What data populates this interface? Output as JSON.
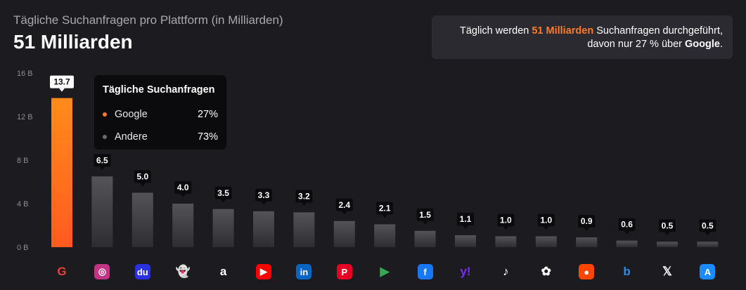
{
  "header": {
    "subtitle": "Tägliche Suchanfragen pro Plattform (in Milliarden)",
    "title": "51 Milliarden"
  },
  "callout": {
    "line1_prefix": "Täglich werden ",
    "line1_highlight": "51 Milliarden",
    "line1_suffix": " Suchanfragen durchgeführt,",
    "line2_prefix": "davon nur 27 % über ",
    "line2_bold": "Google",
    "line2_suffix": "."
  },
  "tooltip": {
    "heading": "Tägliche Suchanfragen",
    "rows": [
      {
        "name": "Google",
        "value": "27%",
        "color": "#ff7a2a"
      },
      {
        "name": "Andere",
        "value": "73%",
        "color": "#6b6a70"
      }
    ]
  },
  "colors": {
    "highlight": "#ff7a2a",
    "bar_top_highlight": "#ff8c1a",
    "bar_bottom_highlight": "#ff5a1f",
    "bar_top": "#545358",
    "bar_bottom": "#2e2d32"
  },
  "chart_data": {
    "type": "bar",
    "ylim": [
      0,
      16
    ],
    "yticks": [
      "0 B",
      "4 B",
      "8 B",
      "12 B",
      "16 B"
    ],
    "categories": [
      "Google",
      "Instagram",
      "Baidu",
      "Snapchat",
      "Amazon",
      "YouTube",
      "LinkedIn",
      "Pinterest",
      "Google Play",
      "Facebook",
      "Yahoo",
      "TikTok",
      "ChatGPT",
      "Reddit",
      "Bing",
      "X",
      "App Store"
    ],
    "values": [
      13.7,
      6.5,
      5.0,
      4.0,
      3.5,
      3.3,
      3.2,
      2.4,
      2.1,
      1.5,
      1.1,
      1.0,
      1.0,
      0.9,
      0.6,
      0.5,
      0.5
    ],
    "labels": [
      "13.7",
      "6.5",
      "5.0",
      "4.0",
      "3.5",
      "3.3",
      "3.2",
      "2.4",
      "2.1",
      "1.5",
      "1.1",
      "1.0",
      "1.0",
      "0.9",
      "0.6",
      "0.5",
      "0.5"
    ],
    "highlight_index": 0
  },
  "icons": [
    {
      "name": "google-icon",
      "glyph": "G",
      "bg": "transparent",
      "fg": "#ea4335"
    },
    {
      "name": "instagram-icon",
      "glyph": "◎",
      "bg": "#c13584",
      "fg": "#ffffff"
    },
    {
      "name": "baidu-icon",
      "glyph": "du",
      "bg": "#2932e1",
      "fg": "#ffffff"
    },
    {
      "name": "snapchat-icon",
      "glyph": "👻",
      "bg": "transparent",
      "fg": "#ffffff"
    },
    {
      "name": "amazon-icon",
      "glyph": "a",
      "bg": "transparent",
      "fg": "#ffffff"
    },
    {
      "name": "youtube-icon",
      "glyph": "▶",
      "bg": "#ff0000",
      "fg": "#ffffff"
    },
    {
      "name": "linkedin-icon",
      "glyph": "in",
      "bg": "#0a66c2",
      "fg": "#ffffff"
    },
    {
      "name": "pinterest-icon",
      "glyph": "P",
      "bg": "#e60023",
      "fg": "#ffffff"
    },
    {
      "name": "google-play-icon",
      "glyph": "▶",
      "bg": "transparent",
      "fg": "#34a853"
    },
    {
      "name": "facebook-icon",
      "glyph": "f",
      "bg": "#1877f2",
      "fg": "#ffffff"
    },
    {
      "name": "yahoo-icon",
      "glyph": "y!",
      "bg": "transparent",
      "fg": "#7b2ff7"
    },
    {
      "name": "tiktok-icon",
      "glyph": "♪",
      "bg": "transparent",
      "fg": "#ffffff"
    },
    {
      "name": "chatgpt-icon",
      "glyph": "✿",
      "bg": "transparent",
      "fg": "#ffffff"
    },
    {
      "name": "reddit-icon",
      "glyph": "●",
      "bg": "#ff4500",
      "fg": "#ffffff"
    },
    {
      "name": "bing-icon",
      "glyph": "b",
      "bg": "transparent",
      "fg": "#2a8be8"
    },
    {
      "name": "x-icon",
      "glyph": "𝕏",
      "bg": "transparent",
      "fg": "#ffffff"
    },
    {
      "name": "app-store-icon",
      "glyph": "A",
      "bg": "#1a8cff",
      "fg": "#ffffff"
    }
  ]
}
